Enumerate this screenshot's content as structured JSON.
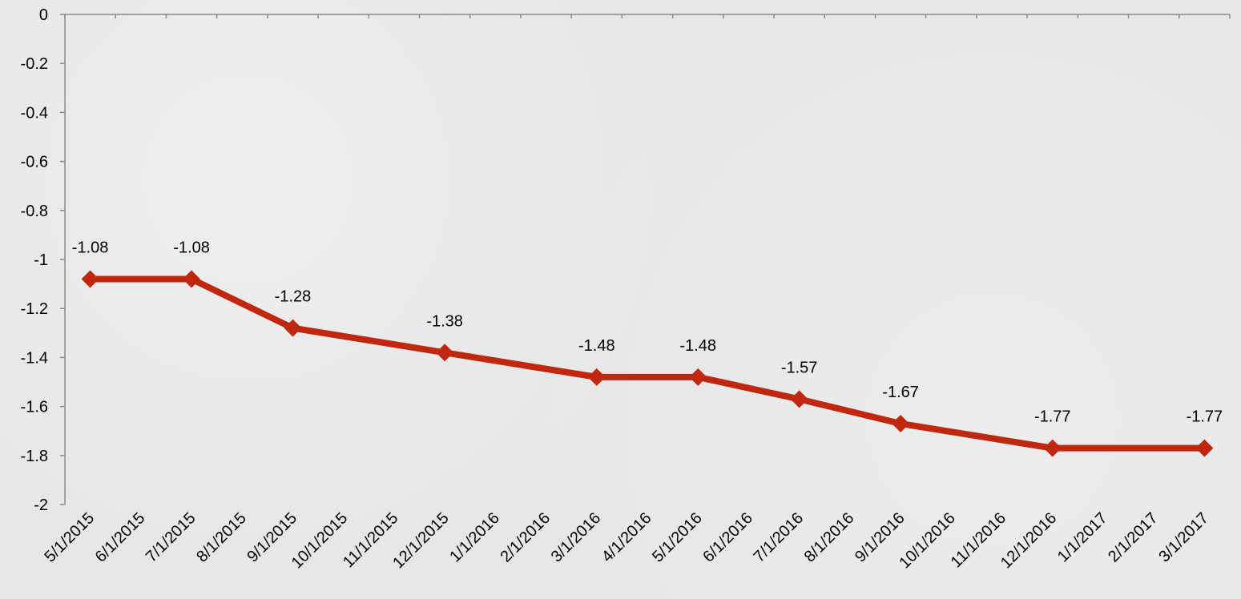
{
  "chart_data": {
    "type": "line",
    "title": "",
    "xlabel": "",
    "ylabel": "",
    "ylim": [
      -2,
      0
    ],
    "y_ticks": [
      "0",
      "-0.2",
      "-0.4",
      "-0.6",
      "-0.8",
      "-1",
      "-1.2",
      "-1.4",
      "-1.6",
      "-1.8",
      "-2"
    ],
    "categories": [
      "5/1/2015",
      "6/1/2015",
      "7/1/2015",
      "8/1/2015",
      "9/1/2015",
      "10/1/2015",
      "11/1/2015",
      "12/1/2015",
      "1/1/2016",
      "2/1/2016",
      "3/1/2016",
      "4/1/2016",
      "5/1/2016",
      "6/1/2016",
      "7/1/2016",
      "8/1/2016",
      "9/1/2016",
      "10/1/2016",
      "11/1/2016",
      "12/1/2016",
      "1/1/2017",
      "2/1/2017",
      "3/1/2017"
    ],
    "series": [
      {
        "color": "#c0270f",
        "marker": "diamond",
        "points": [
          {
            "x": "5/1/2015",
            "y": -1.08,
            "label": "-1.08"
          },
          {
            "x": "7/1/2015",
            "y": -1.08,
            "label": "-1.08"
          },
          {
            "x": "9/1/2015",
            "y": -1.28,
            "label": "-1.28"
          },
          {
            "x": "12/1/2015",
            "y": -1.38,
            "label": "-1.38"
          },
          {
            "x": "3/1/2016",
            "y": -1.48,
            "label": "-1.48"
          },
          {
            "x": "5/1/2016",
            "y": -1.48,
            "label": "-1.48"
          },
          {
            "x": "7/1/2016",
            "y": -1.57,
            "label": "-1.57"
          },
          {
            "x": "9/1/2016",
            "y": -1.67,
            "label": "-1.67"
          },
          {
            "x": "12/1/2016",
            "y": -1.77,
            "label": "-1.77"
          },
          {
            "x": "3/1/2017",
            "y": -1.77,
            "label": "-1.77"
          }
        ]
      }
    ],
    "grid": false,
    "legend": "none"
  }
}
